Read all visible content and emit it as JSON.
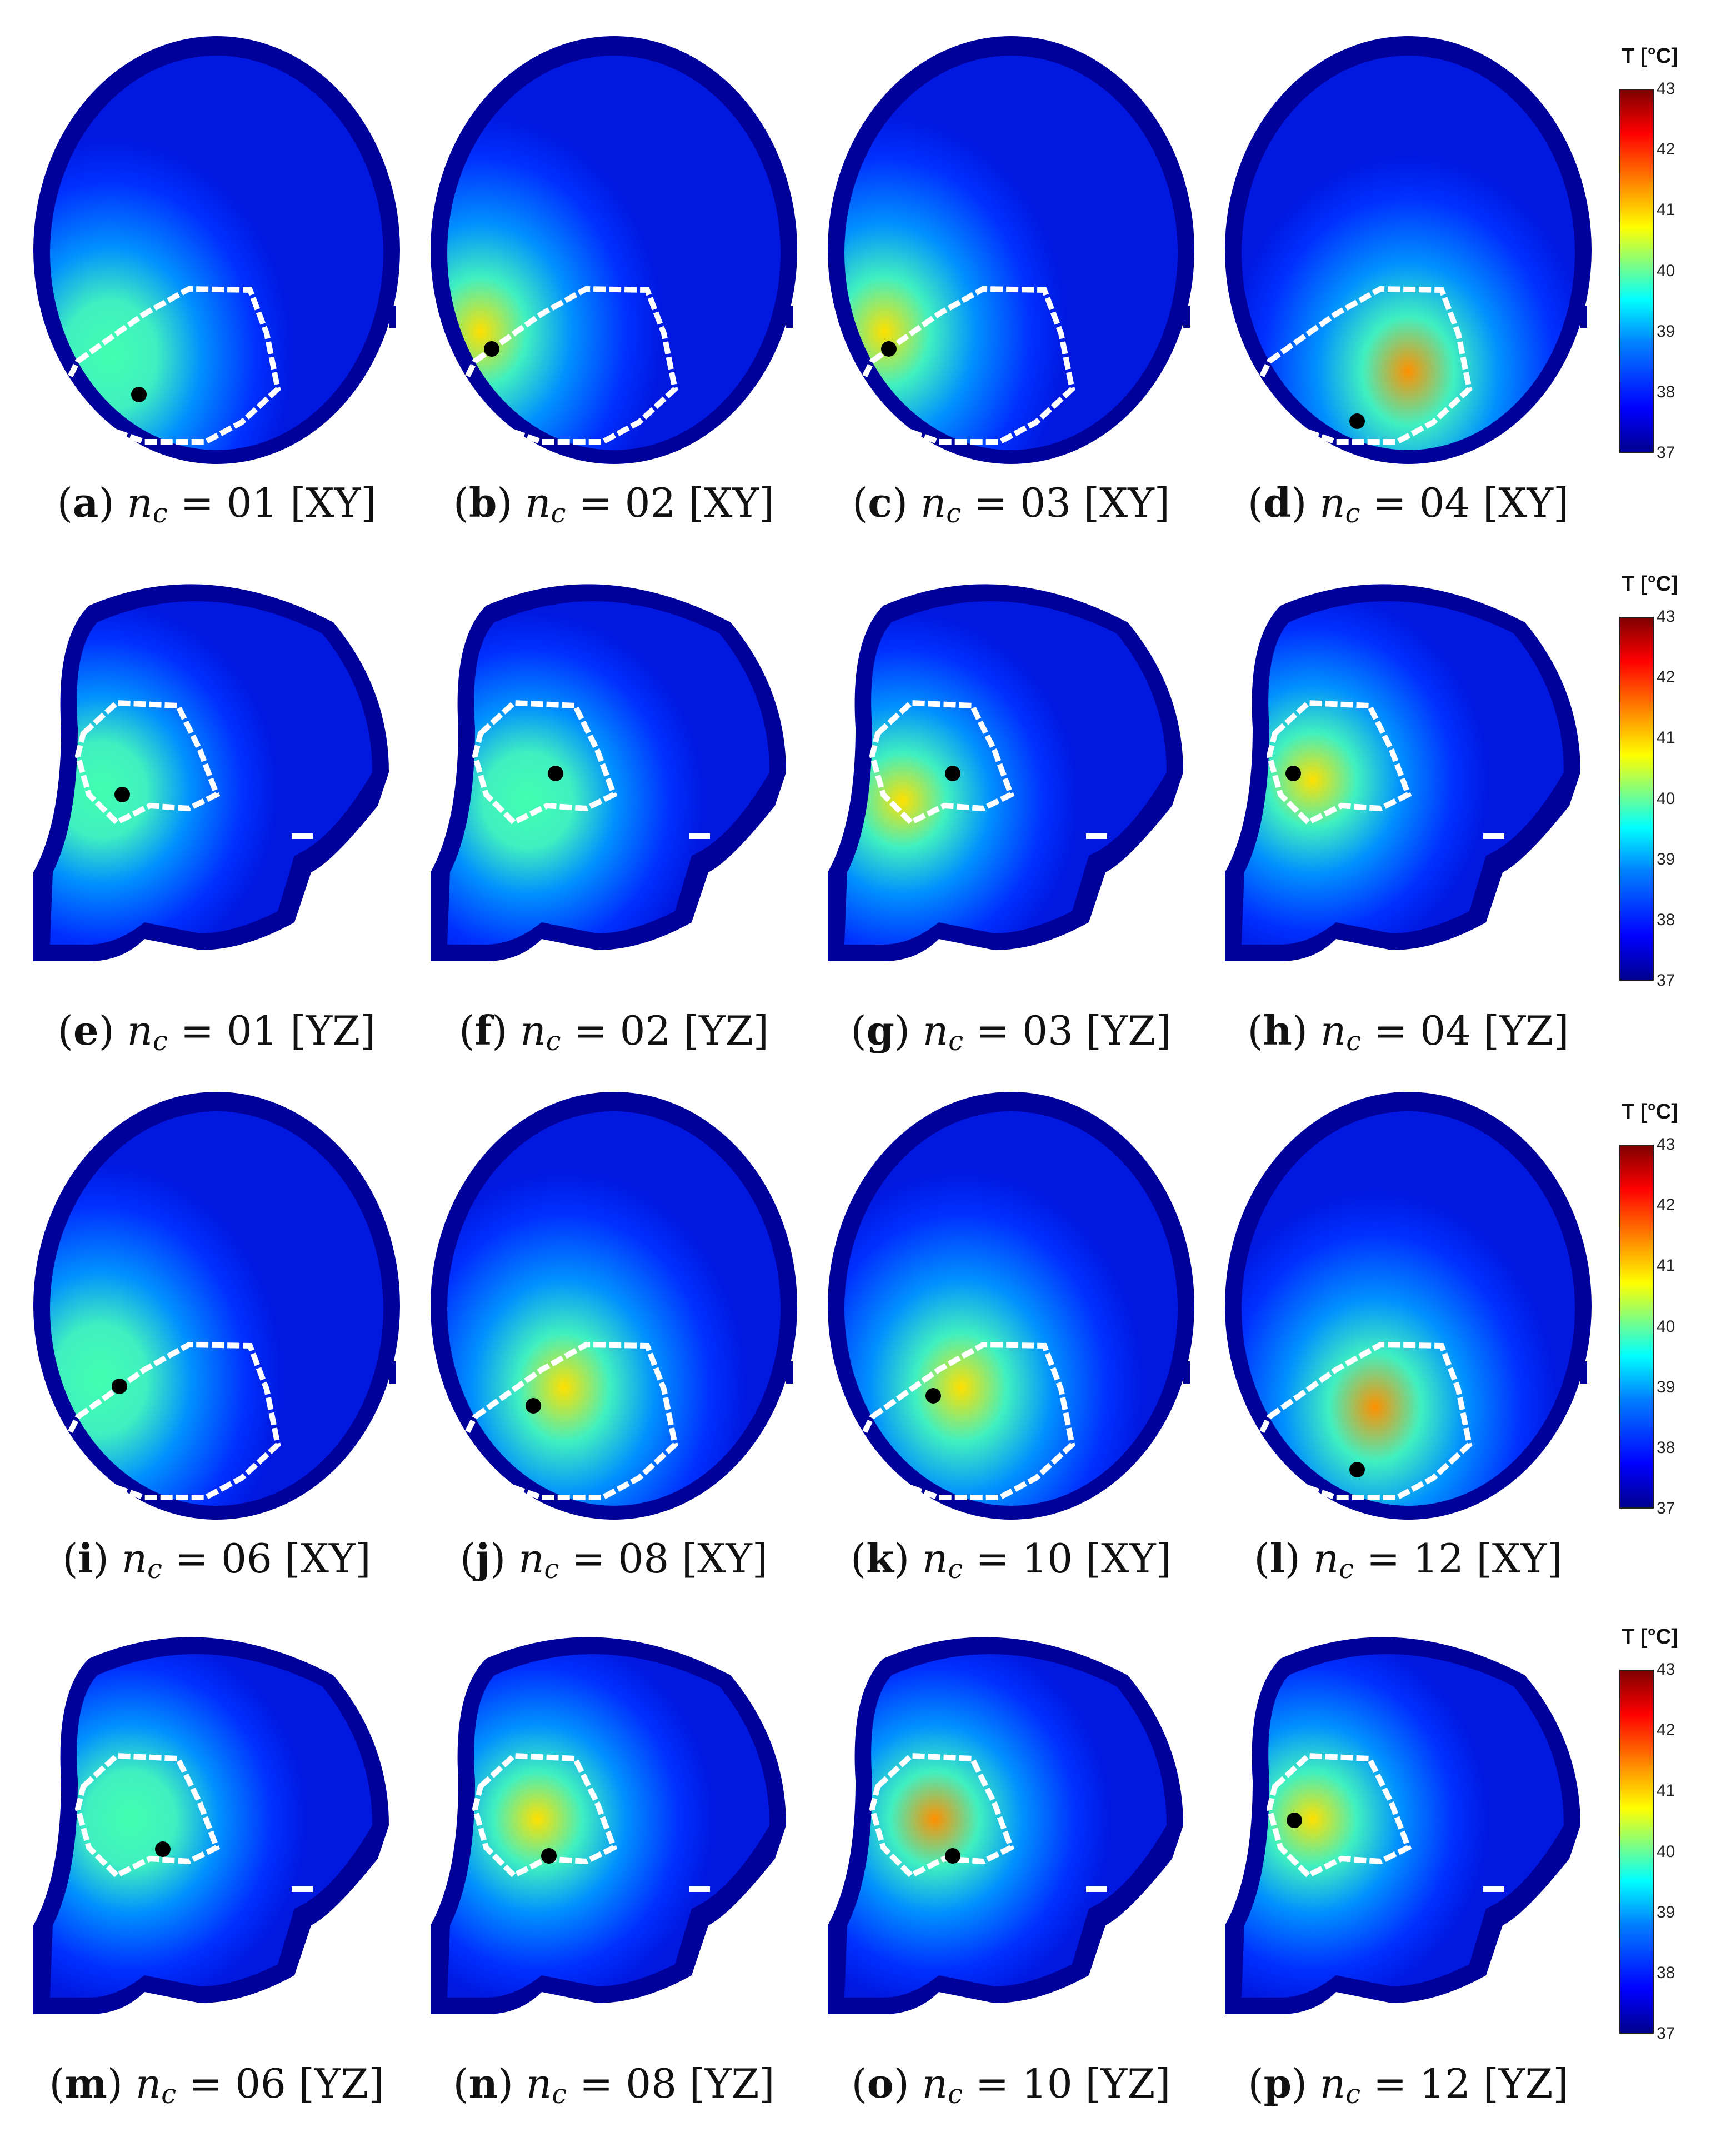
{
  "panels": [
    {
      "letter": "a",
      "nc": "01",
      "plane": "XY"
    },
    {
      "letter": "b",
      "nc": "02",
      "plane": "XY"
    },
    {
      "letter": "c",
      "nc": "03",
      "plane": "XY"
    },
    {
      "letter": "d",
      "nc": "04",
      "plane": "XY"
    },
    {
      "letter": "e",
      "nc": "01",
      "plane": "YZ"
    },
    {
      "letter": "f",
      "nc": "02",
      "plane": "YZ"
    },
    {
      "letter": "g",
      "nc": "03",
      "plane": "YZ"
    },
    {
      "letter": "h",
      "nc": "04",
      "plane": "YZ"
    },
    {
      "letter": "i",
      "nc": "06",
      "plane": "XY"
    },
    {
      "letter": "j",
      "nc": "08",
      "plane": "XY"
    },
    {
      "letter": "k",
      "nc": "10",
      "plane": "XY"
    },
    {
      "letter": "l",
      "nc": "12",
      "plane": "XY"
    },
    {
      "letter": "m",
      "nc": "06",
      "plane": "YZ"
    },
    {
      "letter": "n",
      "nc": "08",
      "plane": "YZ"
    },
    {
      "letter": "o",
      "nc": "10",
      "plane": "YZ"
    },
    {
      "letter": "p",
      "nc": "12",
      "plane": "YZ"
    }
  ],
  "caption_symbol": {
    "n": "n",
    "sub": "c",
    "eq": "="
  },
  "colorbar": {
    "title": "T [°C]",
    "ticks": [
      "43",
      "42",
      "41",
      "40",
      "39",
      "38",
      "37"
    ],
    "min": 37,
    "max": 43,
    "colormap": "jet"
  },
  "colors": {
    "background_tissue": "#0000a0",
    "outline": "#ffffff",
    "marker": "#000000"
  }
}
